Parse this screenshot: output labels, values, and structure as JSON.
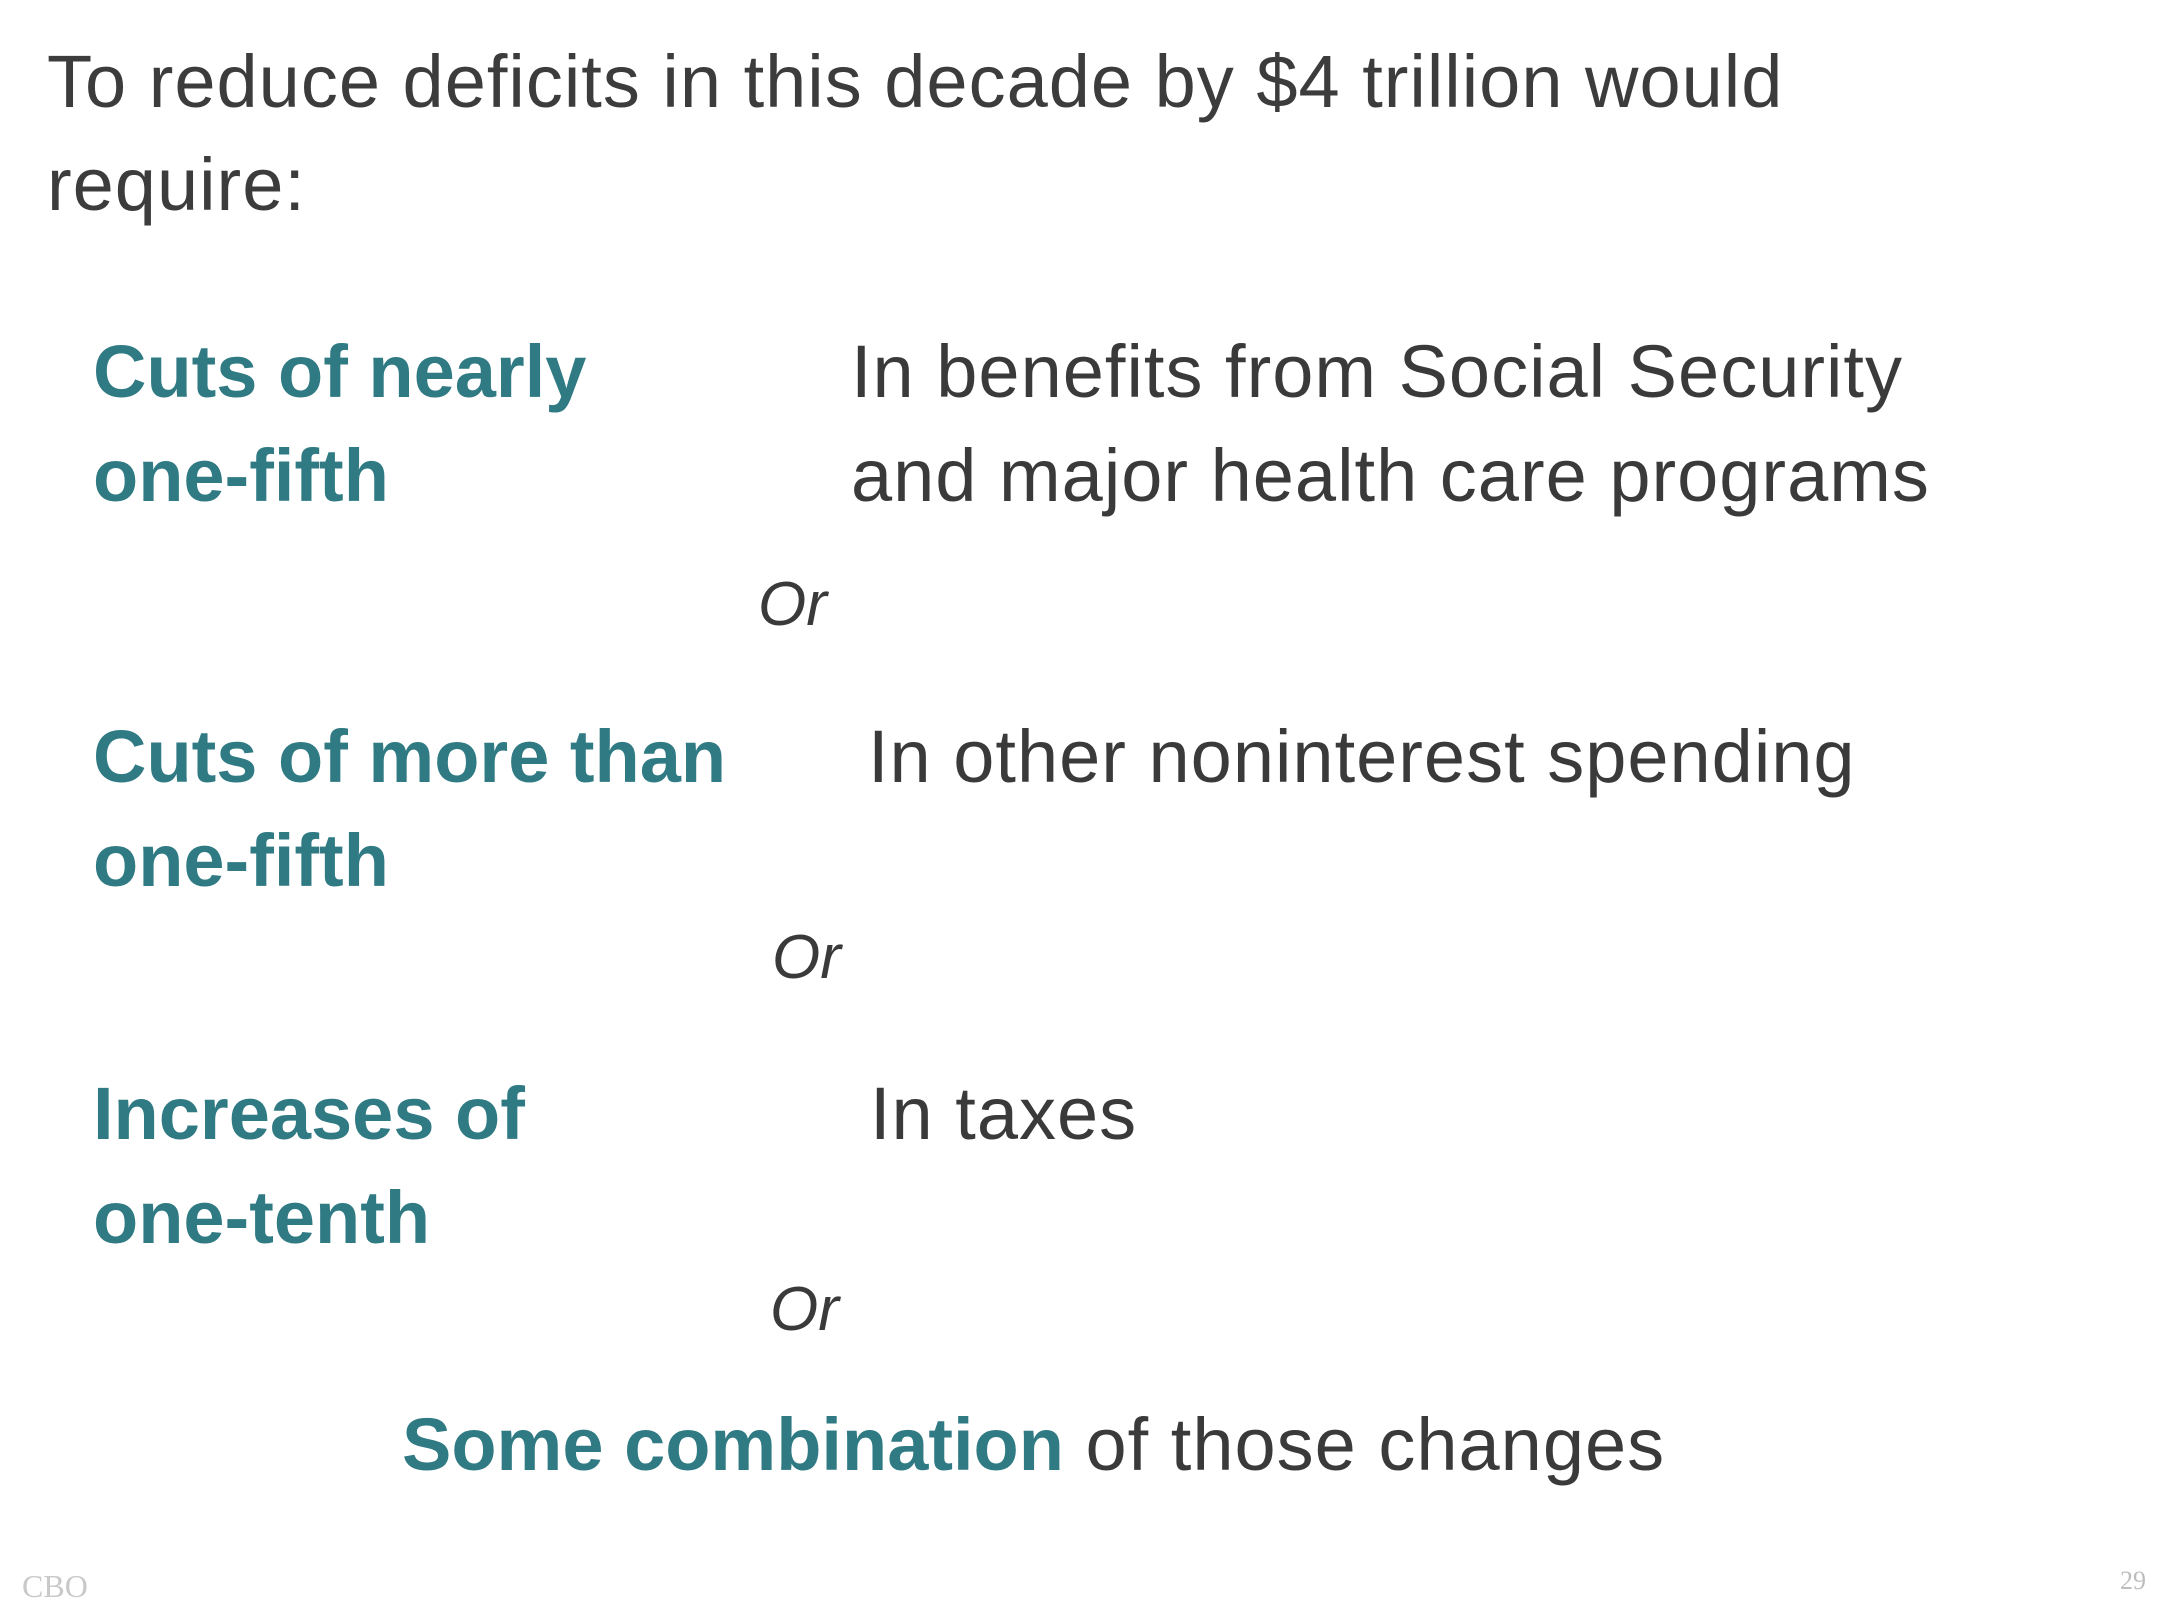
{
  "title": "To reduce deficits in this decade by $4 trillion would require:",
  "options": [
    {
      "label_line1": "Cuts of nearly",
      "label_line2": "one-fifth",
      "desc_line1": "In benefits from Social Security",
      "desc_line2": "and major health care programs"
    },
    {
      "label_line1": "Cuts of more than",
      "label_line2": "one-fifth",
      "desc_line1": "In other noninterest spending",
      "desc_line2": ""
    },
    {
      "label_line1": "Increases of",
      "label_line2": "one-tenth",
      "desc_line1": "In taxes",
      "desc_line2": ""
    }
  ],
  "separators": [
    "Or",
    "Or",
    "Or"
  ],
  "combination": {
    "emphasis": "Some combination",
    "rest": " of those changes"
  },
  "footer": {
    "source": "CBO",
    "page_number": "29"
  },
  "colors": {
    "accent": "#2f7a83",
    "text": "#3a3a3a",
    "footer": "#c9c9c9"
  }
}
